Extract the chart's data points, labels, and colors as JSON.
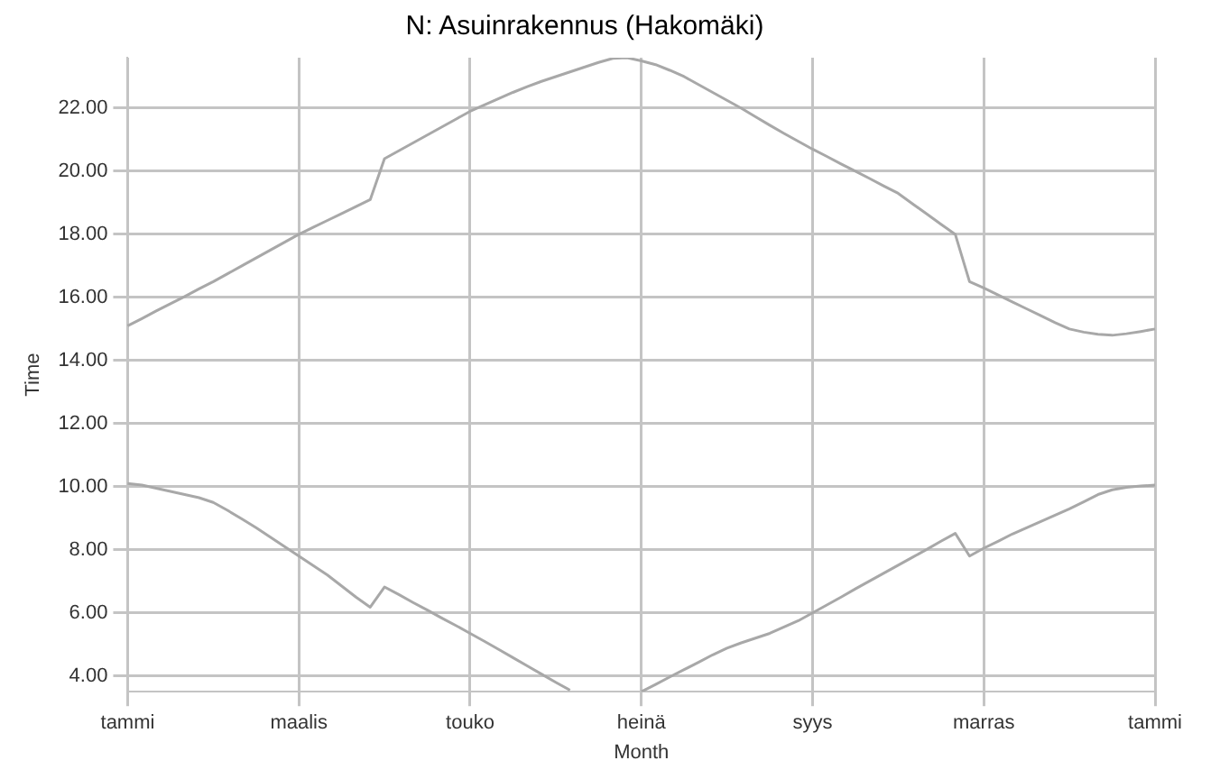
{
  "chart_data": {
    "type": "line",
    "title": "N: Asuinrakennus (Hakomäki)",
    "xlabel": "Month",
    "ylabel": "Time",
    "categories": [
      "tammi",
      null,
      null,
      null,
      null,
      null,
      null,
      null,
      null,
      null,
      null,
      null,
      "maalis",
      null,
      null,
      null,
      null,
      null,
      null,
      null,
      null,
      null,
      null,
      null,
      "touko",
      null,
      null,
      null,
      null,
      null,
      null,
      null,
      null,
      null,
      null,
      null,
      "heinä",
      null,
      null,
      null,
      null,
      null,
      null,
      null,
      null,
      null,
      null,
      null,
      "syys",
      null,
      null,
      null,
      null,
      null,
      null,
      null,
      null,
      null,
      null,
      null,
      "marras",
      null,
      null,
      null,
      null,
      null,
      null,
      null,
      null,
      null,
      null,
      null,
      "tammi"
    ],
    "ylim": [
      3.5,
      23.6
    ],
    "yticks": [
      {
        "value": 4,
        "label": "4.00"
      },
      {
        "value": 6,
        "label": "6.00"
      },
      {
        "value": 8,
        "label": "8.00"
      },
      {
        "value": 10,
        "label": "10.00"
      },
      {
        "value": 12,
        "label": "12.00"
      },
      {
        "value": 14,
        "label": "14.00"
      },
      {
        "value": 16,
        "label": "16.00"
      },
      {
        "value": 18,
        "label": "18.00"
      },
      {
        "value": 20,
        "label": "20.00"
      },
      {
        "value": 22,
        "label": "22.00"
      }
    ],
    "grid": true,
    "legend": false,
    "marker": "none",
    "line_style": "solid",
    "series": [
      {
        "color": "#a8a8a8",
        "values": [
          15.1,
          15.33,
          15.57,
          15.8,
          16.03,
          16.27,
          16.5,
          16.75,
          17.0,
          17.25,
          17.5,
          17.75,
          18.0,
          18.22,
          18.44,
          18.66,
          18.88,
          19.1,
          20.4,
          20.65,
          20.9,
          21.15,
          21.4,
          21.65,
          21.9,
          22.1,
          22.3,
          22.5,
          22.68,
          22.85,
          23.0,
          23.15,
          23.3,
          23.45,
          23.58,
          23.6,
          23.5,
          23.38,
          23.2,
          23.0,
          22.75,
          22.5,
          22.25,
          22.0,
          21.73,
          21.46,
          21.2,
          20.95,
          20.7,
          20.47,
          20.23,
          20.0,
          19.77,
          19.53,
          19.3,
          18.97,
          18.65,
          18.32,
          18.0,
          16.5,
          16.3,
          16.08,
          15.86,
          15.64,
          15.42,
          15.2,
          15.0,
          14.9,
          14.83,
          14.8,
          14.85,
          14.92,
          15.0
        ]
      },
      {
        "color": "#a8a8a8",
        "values": [
          10.1,
          10.05,
          9.95,
          9.85,
          9.75,
          9.65,
          9.5,
          9.25,
          8.98,
          8.7,
          8.4,
          8.1,
          7.8,
          7.5,
          7.2,
          6.85,
          6.5,
          6.18,
          6.82,
          6.58,
          6.33,
          6.09,
          5.84,
          5.6,
          5.35,
          5.1,
          4.84,
          4.58,
          4.32,
          4.06,
          3.8,
          3.55,
          null,
          null,
          null,
          null,
          3.5,
          3.73,
          3.97,
          4.2,
          4.43,
          4.67,
          4.88,
          5.05,
          5.2,
          5.35,
          5.55,
          5.75,
          6.0,
          6.25,
          6.5,
          6.76,
          7.01,
          7.26,
          7.51,
          7.76,
          8.01,
          8.27,
          8.52,
          7.8,
          8.05,
          8.27,
          8.5,
          8.7,
          8.9,
          9.1,
          9.3,
          9.52,
          9.75,
          9.9,
          9.98,
          10.02,
          10.05
        ]
      }
    ]
  }
}
